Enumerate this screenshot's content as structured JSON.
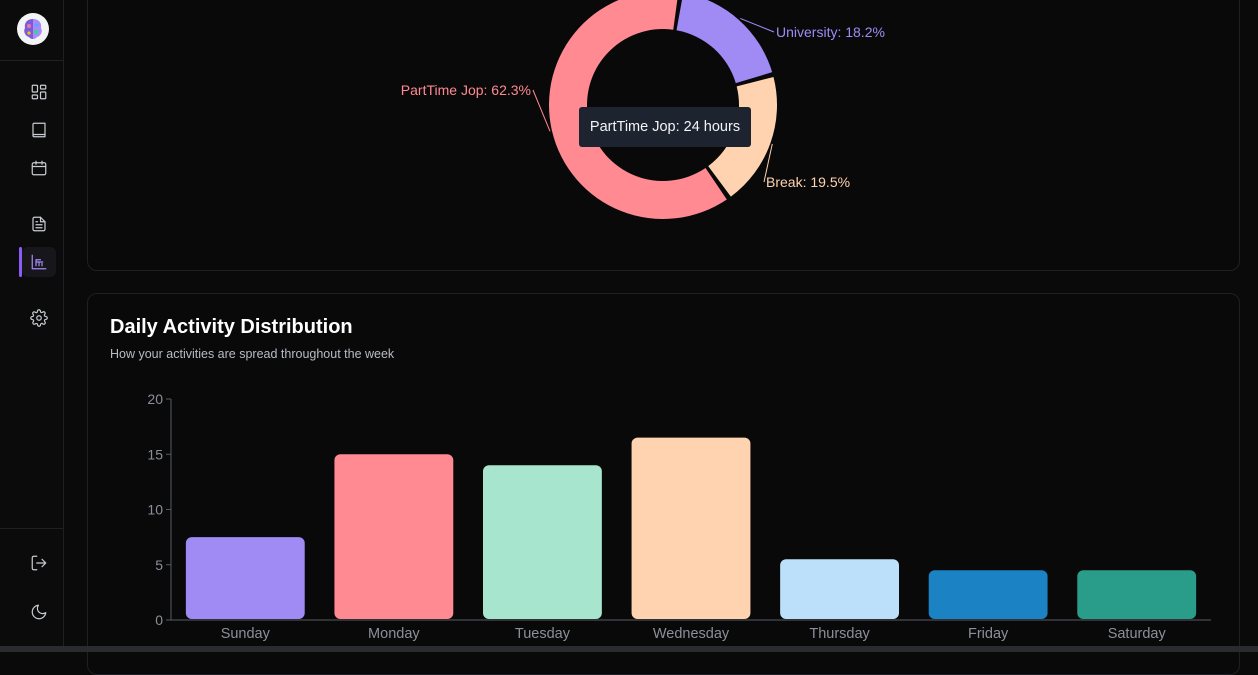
{
  "sidebar": {
    "logo_icon": "brain-logo-icon",
    "items": [
      {
        "name": "dashboard",
        "icon": "grid-icon",
        "active": false
      },
      {
        "name": "courses",
        "icon": "book-icon",
        "active": false
      },
      {
        "name": "calendar",
        "icon": "calendar-icon",
        "active": false
      },
      {
        "name": "documents",
        "icon": "file-text-icon",
        "active": false
      },
      {
        "name": "analytics",
        "icon": "bar-chart-icon",
        "active": true
      },
      {
        "name": "settings",
        "icon": "gear-icon",
        "active": false
      }
    ],
    "bottom_items": [
      {
        "name": "logout",
        "icon": "logout-icon"
      },
      {
        "name": "theme",
        "icon": "moon-icon"
      }
    ],
    "accent": "#8b5cf6"
  },
  "donut_chart": {
    "tooltip": "PartTime Jop: 24 hours",
    "chart_data": {
      "type": "pie",
      "categories": [
        "PartTime Jop",
        "University",
        "Break"
      ],
      "values": [
        62.3,
        18.2,
        19.5
      ],
      "labels": [
        "PartTime Jop: 62.3%",
        "University: 18.2%",
        "Break: 19.5%"
      ],
      "colors": [
        "#ff8a92",
        "#a08bf5",
        "#ffd3b0"
      ]
    }
  },
  "activity_card": {
    "title": "Daily Activity Distribution",
    "subtitle": "How your activities are spread throughout the week"
  },
  "chart_data": {
    "type": "bar",
    "categories": [
      "Sunday",
      "Monday",
      "Tuesday",
      "Wednesday",
      "Thursday",
      "Friday",
      "Saturday"
    ],
    "values": [
      7.5,
      15,
      14,
      16.5,
      5.5,
      4.5,
      4.5
    ],
    "colors": [
      "#a08bf5",
      "#ff8a92",
      "#a7e5cf",
      "#ffd3b0",
      "#bde0fa",
      "#1b82c4",
      "#2a9d8a"
    ],
    "ylim": [
      0,
      20
    ],
    "yticks": [
      "0",
      "5",
      "10",
      "15",
      "20"
    ],
    "xlabel": "",
    "ylabel": "",
    "grid": false
  }
}
